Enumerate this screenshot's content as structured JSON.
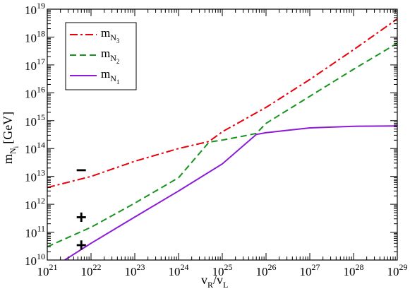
{
  "chart_data": {
    "type": "line",
    "title": "",
    "xlabel": {
      "base": "v",
      "sub1": "R",
      "sep": "/v",
      "sub2": "L"
    },
    "ylabel": {
      "base": "m",
      "sub": "N",
      "subsub": "i",
      "unit": "[GeV]"
    },
    "x_scale": "log",
    "y_scale": "log",
    "xlim": [
      1e+21,
      1e+29
    ],
    "ylim": [
      10000000000.0,
      1e+19
    ],
    "x_ticks": [
      {
        "base": "10",
        "exp": "21",
        "value": 1e+21
      },
      {
        "base": "10",
        "exp": "22",
        "value": 1e+22
      },
      {
        "base": "10",
        "exp": "23",
        "value": 1e+23
      },
      {
        "base": "10",
        "exp": "24",
        "value": 1e+24
      },
      {
        "base": "10",
        "exp": "25",
        "value": 1e+25
      },
      {
        "base": "10",
        "exp": "26",
        "value": 1e+26
      },
      {
        "base": "10",
        "exp": "27",
        "value": 1e+27
      },
      {
        "base": "10",
        "exp": "28",
        "value": 1e+28
      },
      {
        "base": "10",
        "exp": "29",
        "value": 1e+29
      }
    ],
    "y_ticks": [
      {
        "base": "10",
        "exp": "10",
        "value": 10000000000.0
      },
      {
        "base": "10",
        "exp": "11",
        "value": 100000000000.0
      },
      {
        "base": "10",
        "exp": "12",
        "value": 1000000000000.0
      },
      {
        "base": "10",
        "exp": "13",
        "value": 10000000000000.0
      },
      {
        "base": "10",
        "exp": "14",
        "value": 100000000000000.0
      },
      {
        "base": "10",
        "exp": "15",
        "value": 1000000000000000.0
      },
      {
        "base": "10",
        "exp": "16",
        "value": 1e+16
      },
      {
        "base": "10",
        "exp": "17",
        "value": 1e+17
      },
      {
        "base": "10",
        "exp": "18",
        "value": 1e+18
      },
      {
        "base": "10",
        "exp": "19",
        "value": 1e+19
      }
    ],
    "grid": false,
    "legend_position": "top-left",
    "series": [
      {
        "label": {
          "base": "m",
          "sub": "N",
          "subsub": "3"
        },
        "color": "#e8000b",
        "dash": "dashdot",
        "points": [
          [
            1e+21,
            4000000000000.0
          ],
          [
            1e+22,
            10000000000000.0
          ],
          [
            1e+23,
            35000000000000.0
          ],
          [
            1e+24,
            100000000000000.0
          ],
          [
            5e+24,
            180000000000000.0
          ],
          [
            1e+25,
            400000000000000.0
          ],
          [
            1e+26,
            3000000000000000.0
          ],
          [
            1e+27,
            3e+16
          ],
          [
            1e+28,
            3.5e+17
          ],
          [
            1e+29,
            4.5e+18
          ]
        ]
      },
      {
        "label": {
          "base": "m",
          "sub": "N",
          "subsub": "2"
        },
        "color": "#17941e",
        "dash": "dashed",
        "points": [
          [
            1e+21,
            30000000000.0
          ],
          [
            1e+22,
            150000000000.0
          ],
          [
            1e+23,
            1100000000000.0
          ],
          [
            1e+24,
            9000000000000.0
          ],
          [
            5e+24,
            170000000000000.0
          ],
          [
            1e+25,
            200000000000000.0
          ],
          [
            3e+25,
            280000000000000.0
          ],
          [
            6e+25,
            350000000000000.0
          ],
          [
            1e+26,
            800000000000000.0
          ],
          [
            1e+27,
            7500000000000000.0
          ],
          [
            1e+28,
            7e+16
          ],
          [
            1e+29,
            6e+17
          ]
        ]
      },
      {
        "label": {
          "base": "m",
          "sub": "N",
          "subsub": "1"
        },
        "color": "#8c1bd6",
        "dash": "solid",
        "points": [
          [
            2.5e+21,
            10000000000.0
          ],
          [
            1e+22,
            40000000000.0
          ],
          [
            1e+23,
            350000000000.0
          ],
          [
            1e+24,
            3000000000000.0
          ],
          [
            1e+25,
            28000000000000.0
          ],
          [
            6e+25,
            320000000000000.0
          ],
          [
            1e+26,
            370000000000000.0
          ],
          [
            3e+26,
            450000000000000.0
          ],
          [
            1e+27,
            550000000000000.0
          ],
          [
            1e+28,
            630000000000000.0
          ],
          [
            1e+29,
            650000000000000.0
          ]
        ]
      }
    ],
    "annotations": [
      {
        "text": "−",
        "x": 6e+21,
        "y": 17000000000000.0
      },
      {
        "text": "+",
        "x": 6e+21,
        "y": 350000000000.0
      },
      {
        "text": "+",
        "x": 6e+21,
        "y": 35000000000.0
      }
    ]
  }
}
